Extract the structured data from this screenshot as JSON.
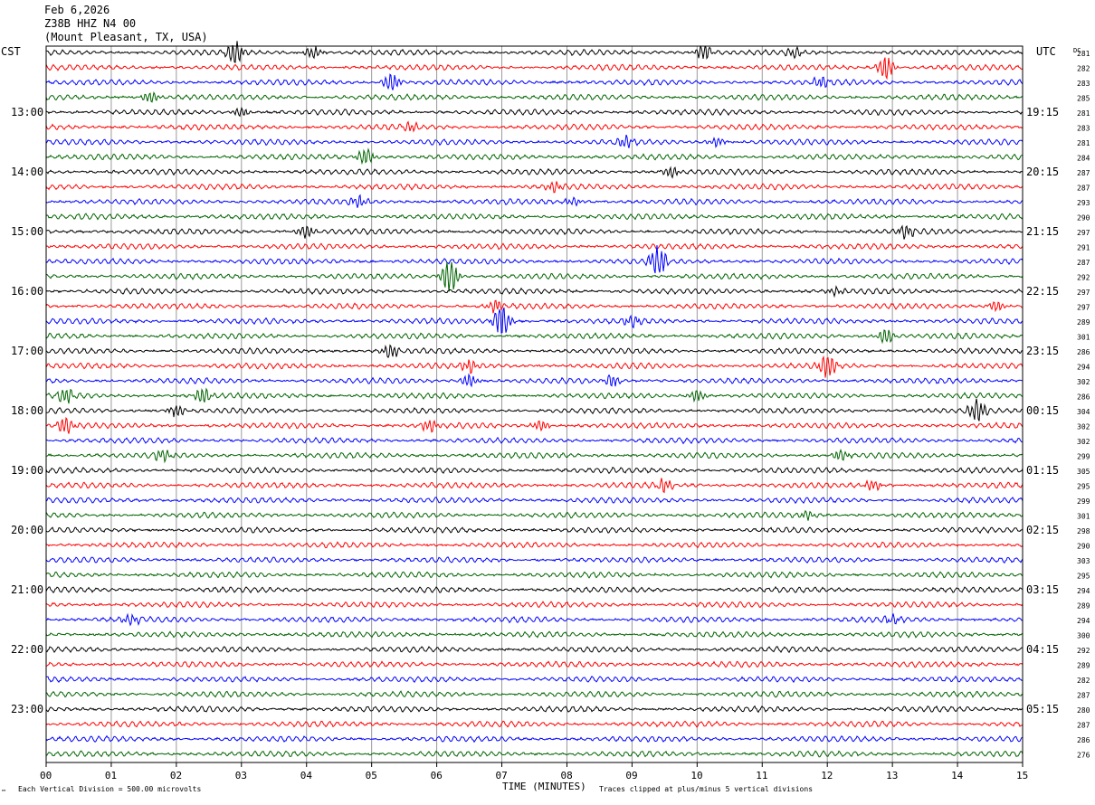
{
  "header": {
    "date": "Feb 6,2026",
    "station": "Z38B HHZ N4 00",
    "location": "(Mount Pleasant, TX, USA)"
  },
  "left_axis_label": "CST",
  "right_axis_label": "UTC",
  "dc_label": "DC",
  "footer": {
    "scale_note": "Each Vertical Division =  500.00 microvolts",
    "xlabel": "TIME (MINUTES)",
    "clip_note": "Traces clipped at plus/minus 5 vertical divisions"
  },
  "colors": {
    "cycle": [
      "#000000",
      "#ff0000",
      "#0000ff",
      "#006400"
    ],
    "grid": "#9a9a9a"
  },
  "chart_data": {
    "type": "line",
    "title": "Z38B HHZ N4 00",
    "xlabel": "TIME (MINUTES)",
    "xlim": [
      0,
      15
    ],
    "x_ticks": [
      "00",
      "01",
      "02",
      "03",
      "04",
      "05",
      "06",
      "07",
      "08",
      "09",
      "10",
      "11",
      "12",
      "13",
      "14",
      "15"
    ],
    "cst_hour_labels": [
      "13:00",
      "14:00",
      "15:00",
      "16:00",
      "17:00",
      "18:00",
      "19:00",
      "20:00",
      "21:00",
      "22:00",
      "23:00"
    ],
    "utc_hour_labels": [
      "19:15",
      "20:15",
      "21:15",
      "22:15",
      "23:15",
      "00:15",
      "01:15",
      "02:15",
      "03:15",
      "04:15",
      "05:15"
    ],
    "dc_offsets": [
      281,
      282,
      283,
      285,
      281,
      283,
      281,
      284,
      287,
      287,
      293,
      290,
      297,
      291,
      287,
      292,
      297,
      297,
      289,
      301,
      286,
      294,
      302,
      286,
      304,
      302,
      302,
      299,
      305,
      295,
      299,
      301,
      298,
      290,
      303,
      295,
      294,
      289,
      294,
      300,
      292,
      289,
      282,
      287,
      280,
      287,
      286,
      276
    ],
    "traces_per_hour": 4,
    "events": [
      {
        "trace": 0,
        "minute": 2.9,
        "amp": 2.2
      },
      {
        "trace": 0,
        "minute": 4.1,
        "amp": 1.2
      },
      {
        "trace": 0,
        "minute": 10.1,
        "amp": 1.6
      },
      {
        "trace": 0,
        "minute": 11.5,
        "amp": 1.0
      },
      {
        "trace": 1,
        "minute": 12.9,
        "amp": 2.3
      },
      {
        "trace": 2,
        "minute": 5.3,
        "amp": 1.7
      },
      {
        "trace": 2,
        "minute": 11.9,
        "amp": 1.0
      },
      {
        "trace": 3,
        "minute": 1.6,
        "amp": 1.0
      },
      {
        "trace": 4,
        "minute": 3.0,
        "amp": 0.9
      },
      {
        "trace": 5,
        "minute": 5.6,
        "amp": 0.9
      },
      {
        "trace": 6,
        "minute": 8.9,
        "amp": 1.0
      },
      {
        "trace": 6,
        "minute": 10.3,
        "amp": 0.8
      },
      {
        "trace": 7,
        "minute": 4.9,
        "amp": 1.8
      },
      {
        "trace": 8,
        "minute": 9.6,
        "amp": 1.0
      },
      {
        "trace": 9,
        "minute": 7.8,
        "amp": 0.9
      },
      {
        "trace": 10,
        "minute": 4.8,
        "amp": 1.1
      },
      {
        "trace": 10,
        "minute": 8.1,
        "amp": 0.8
      },
      {
        "trace": 12,
        "minute": 4.0,
        "amp": 1.2
      },
      {
        "trace": 12,
        "minute": 13.2,
        "amp": 1.3
      },
      {
        "trace": 14,
        "minute": 9.4,
        "amp": 3.0
      },
      {
        "trace": 15,
        "minute": 6.2,
        "amp": 3.3
      },
      {
        "trace": 16,
        "minute": 12.1,
        "amp": 0.8
      },
      {
        "trace": 17,
        "minute": 6.9,
        "amp": 1.2
      },
      {
        "trace": 17,
        "minute": 14.6,
        "amp": 1.0
      },
      {
        "trace": 18,
        "minute": 7.0,
        "amp": 3.0
      },
      {
        "trace": 18,
        "minute": 9.0,
        "amp": 1.0
      },
      {
        "trace": 19,
        "minute": 12.9,
        "amp": 1.4
      },
      {
        "trace": 20,
        "minute": 5.3,
        "amp": 1.3
      },
      {
        "trace": 21,
        "minute": 12.0,
        "amp": 2.5
      },
      {
        "trace": 21,
        "minute": 6.5,
        "amp": 1.2
      },
      {
        "trace": 22,
        "minute": 6.5,
        "amp": 1.2
      },
      {
        "trace": 22,
        "minute": 8.7,
        "amp": 1.1
      },
      {
        "trace": 23,
        "minute": 0.3,
        "amp": 1.4
      },
      {
        "trace": 23,
        "minute": 2.4,
        "amp": 1.4
      },
      {
        "trace": 23,
        "minute": 10.0,
        "amp": 1.1
      },
      {
        "trace": 24,
        "minute": 2.0,
        "amp": 1.2
      },
      {
        "trace": 24,
        "minute": 14.3,
        "amp": 2.3
      },
      {
        "trace": 25,
        "minute": 0.3,
        "amp": 1.5
      },
      {
        "trace": 25,
        "minute": 5.9,
        "amp": 1.2
      },
      {
        "trace": 25,
        "minute": 7.6,
        "amp": 1.0
      },
      {
        "trace": 27,
        "minute": 1.8,
        "amp": 1.2
      },
      {
        "trace": 27,
        "minute": 12.2,
        "amp": 1.0
      },
      {
        "trace": 29,
        "minute": 9.5,
        "amp": 1.2
      },
      {
        "trace": 29,
        "minute": 12.7,
        "amp": 1.0
      },
      {
        "trace": 31,
        "minute": 11.7,
        "amp": 0.8
      },
      {
        "trace": 38,
        "minute": 1.3,
        "amp": 1.0
      },
      {
        "trace": 38,
        "minute": 13.0,
        "amp": 0.8
      }
    ]
  }
}
